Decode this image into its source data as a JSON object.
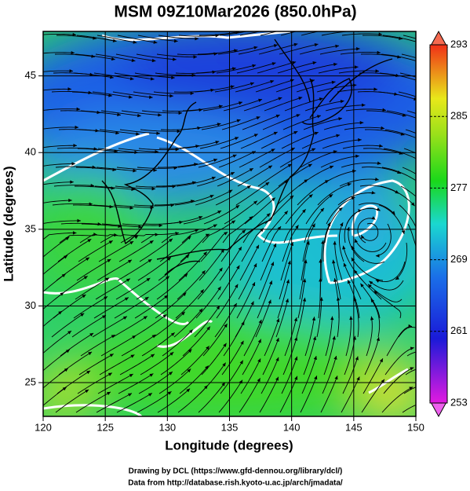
{
  "chart_data": {
    "type": "map",
    "title": "MSM 09Z10Mar2026 (850.0hPa)",
    "xlabel": "Longitude (degrees)",
    "ylabel": "Latitude  (degrees)",
    "xlim": [
      120,
      150
    ],
    "xticks": [
      120,
      125,
      130,
      135,
      140,
      145,
      150
    ],
    "ylim": [
      22.8,
      47.9
    ],
    "yticks": [
      25,
      30,
      35,
      40,
      45
    ],
    "grid": true,
    "colorbar": {
      "lim": [
        253,
        293
      ],
      "ticks": [
        253,
        261,
        269,
        277,
        285,
        293
      ]
    },
    "footer": [
      "Drawing by DCL (https://www.gfd-dennou.org/library/dcl/)",
      "Data from http://database.rish.kyoto-u.ac.jp/arch/jmadata/"
    ]
  }
}
